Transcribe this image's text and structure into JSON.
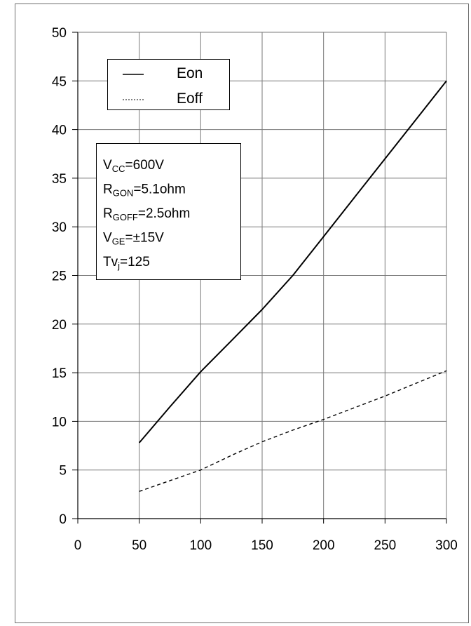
{
  "chart_data": {
    "type": "line",
    "title": "",
    "xlabel": "",
    "ylabel": "",
    "xlim": [
      0,
      300
    ],
    "ylim": [
      0,
      50
    ],
    "x_ticks": [
      "0",
      "50",
      "100",
      "150",
      "200",
      "250",
      "300"
    ],
    "y_ticks": [
      "0",
      "5",
      "10",
      "15",
      "20",
      "25",
      "30",
      "35",
      "40",
      "45",
      "50"
    ],
    "grid": true,
    "legend_position": "top-left",
    "series": [
      {
        "name": "Eon",
        "style": "solid",
        "color": "#000000",
        "x": [
          50,
          75,
          100,
          125,
          150,
          175,
          200,
          225,
          250,
          275,
          300
        ],
        "y": [
          7.8,
          11.5,
          15.1,
          18.3,
          21.5,
          25.0,
          29.0,
          33.0,
          37.0,
          41.0,
          45.0
        ]
      },
      {
        "name": "Eoff",
        "style": "dashed",
        "color": "#000000",
        "x": [
          50,
          75,
          100,
          125,
          150,
          175,
          200,
          225,
          250,
          275,
          300
        ],
        "y": [
          2.8,
          3.9,
          5.0,
          6.5,
          7.9,
          9.1,
          10.2,
          11.4,
          12.6,
          13.9,
          15.2
        ]
      }
    ],
    "conditions": [
      {
        "main": "V",
        "sub": "CC",
        "rest": "=600V"
      },
      {
        "main": "R",
        "sub": "GON",
        "rest": "=5.1ohm"
      },
      {
        "main": "R",
        "sub": "GOFF",
        "rest": "=2.5ohm"
      },
      {
        "main": "V",
        "sub": "GE",
        "rest": "=±15V"
      },
      {
        "main": "Tv",
        "sub": "j",
        "rest": "=125"
      }
    ]
  }
}
